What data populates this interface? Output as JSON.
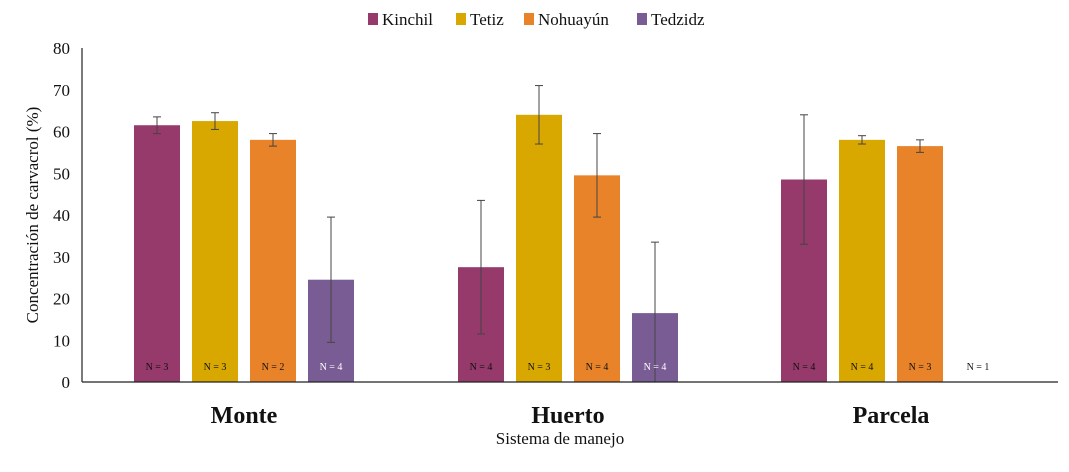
{
  "chart_data": {
    "type": "bar",
    "categories": [
      "Monte",
      "Huerto",
      "Parcela"
    ],
    "xlabel": "Sistema de manejo",
    "ylabel": "Concentración de carvacrol (%)",
    "ylim": [
      0,
      80
    ],
    "yticks": [
      0,
      10,
      20,
      30,
      40,
      50,
      60,
      70,
      80
    ],
    "grid": false,
    "legend_position": "top",
    "series": [
      {
        "name": "Kinchil",
        "color": "#953a6b",
        "values": [
          61.5,
          27.5,
          48.5
        ],
        "errors": [
          2,
          16,
          15.5
        ],
        "n_labels": [
          "N = 3",
          "N = 4",
          "N = 4"
        ]
      },
      {
        "name": "Tetiz",
        "color": "#d9a800",
        "values": [
          62.5,
          64,
          58
        ],
        "errors": [
          2,
          7,
          1
        ],
        "n_labels": [
          "N = 3",
          "N = 3",
          "N = 4"
        ]
      },
      {
        "name": "Nohuayún",
        "color": "#e8832a",
        "values": [
          58,
          49.5,
          56.5
        ],
        "errors": [
          1.5,
          10,
          1.5
        ],
        "n_labels": [
          "N = 2",
          "N = 4",
          "N = 3"
        ]
      },
      {
        "name": "Tedzidz",
        "color": "#7a5c94",
        "values": [
          24.5,
          16.5,
          null
        ],
        "errors": [
          15,
          17,
          null
        ],
        "n_labels": [
          "N = 4",
          "N = 4",
          "N = 1"
        ]
      }
    ]
  }
}
